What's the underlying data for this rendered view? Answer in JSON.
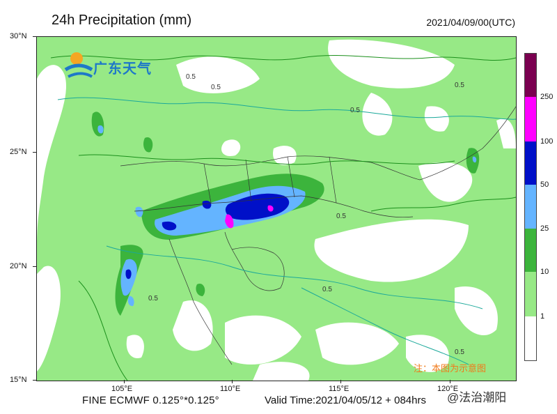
{
  "header": {
    "title": "24h Precipitation (mm)",
    "date": "2021/04/09/00(UTC)"
  },
  "axes": {
    "lat_labels": [
      "30°N",
      "25°N",
      "20°N",
      "15°N"
    ],
    "lon_labels": [
      "105°E",
      "110°E",
      "115°E",
      "120°E"
    ]
  },
  "colorbar": {
    "levels": [
      "250",
      "100",
      "50",
      "25",
      "10",
      "1"
    ],
    "colors": {
      "above250": "#7a0050",
      "c100_250": "#ff00ff",
      "c50_100": "#0010c8",
      "c25_50": "#64b4ff",
      "c10_25": "#3cb43c",
      "c1_10": "#97e986",
      "c0_1": "#ffffff"
    }
  },
  "footer": {
    "model": "FINE ECMWF 0.125°*0.125°",
    "valid": "Valid Time:2021/04/05/12 + 084hrs"
  },
  "logo": {
    "text": "广东天气"
  },
  "note": "注：本图为示意图",
  "watermark": "@法治潮阳",
  "contour_labels": [
    "0.5",
    "0.5",
    "0.5",
    "0.5",
    "0.5",
    "0.5",
    "0.5",
    "0.5"
  ]
}
